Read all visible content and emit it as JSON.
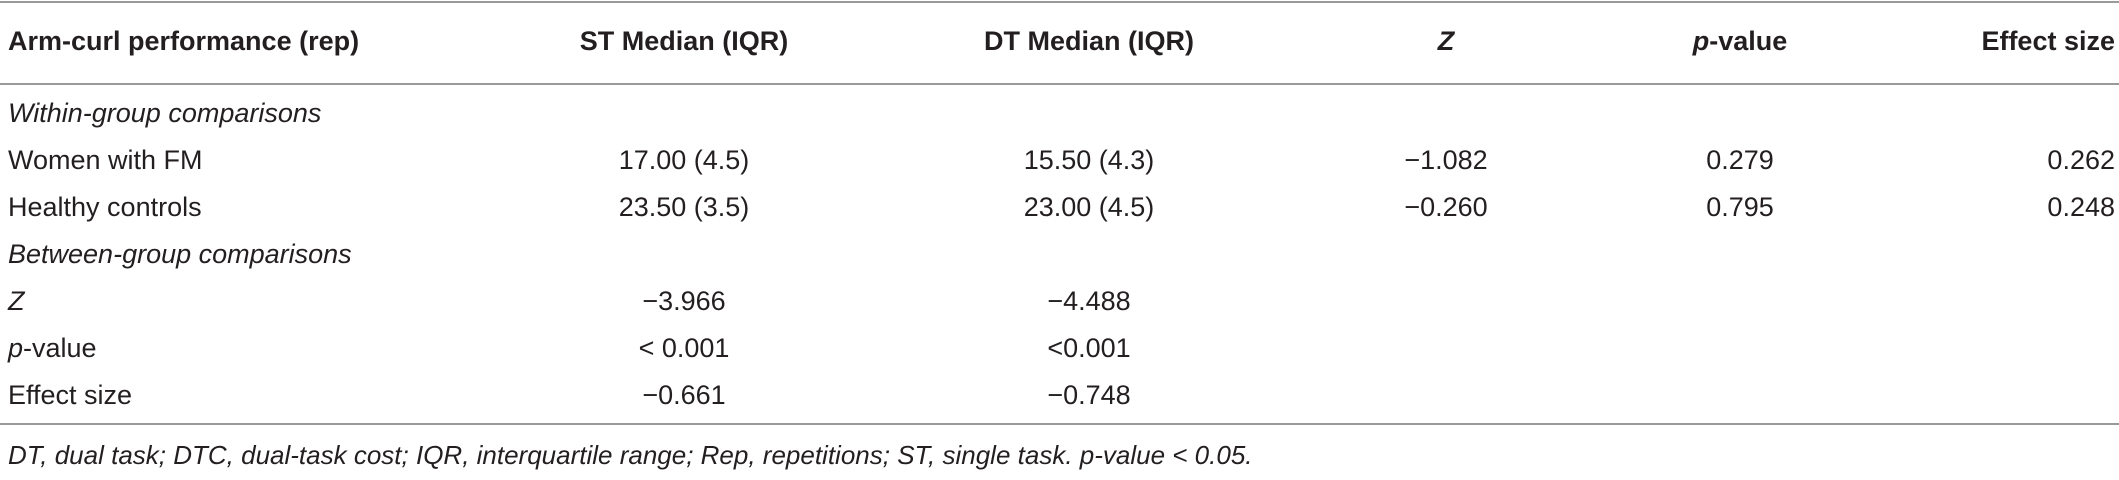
{
  "table": {
    "header": {
      "col0": "Arm-curl performance (rep)",
      "col1": "ST Median (IQR)",
      "col2": "DT Median (IQR)",
      "col3": "Z",
      "col4_italic": "p",
      "col4_rest": "-value",
      "col5": "Effect size"
    },
    "sections": {
      "within": "Within-group comparisons",
      "between": "Between-group comparisons"
    },
    "within_rows": [
      {
        "label": "Women with FM",
        "st": "17.00 (4.5)",
        "dt": "15.50 (4.3)",
        "z": "−1.082",
        "p": "0.279",
        "effect": "0.262"
      },
      {
        "label": "Healthy controls",
        "st": "23.50 (3.5)",
        "dt": "23.00 (4.5)",
        "z": "−0.260",
        "p": "0.795",
        "effect": "0.248"
      }
    ],
    "between_rows": {
      "z": {
        "label": "Z",
        "st": "−3.966",
        "dt": "−4.488"
      },
      "p": {
        "label_italic": "p",
        "label_rest": "-value",
        "st": "< 0.001",
        "dt": "<0.001"
      },
      "effect": {
        "label": "Effect size",
        "st": "−0.661",
        "dt": "−0.748"
      }
    },
    "footnote": "DT, dual task; DTC, dual-task cost; IQR, interquartile range; Rep, repetitions; ST, single task. p-value < 0.05."
  }
}
